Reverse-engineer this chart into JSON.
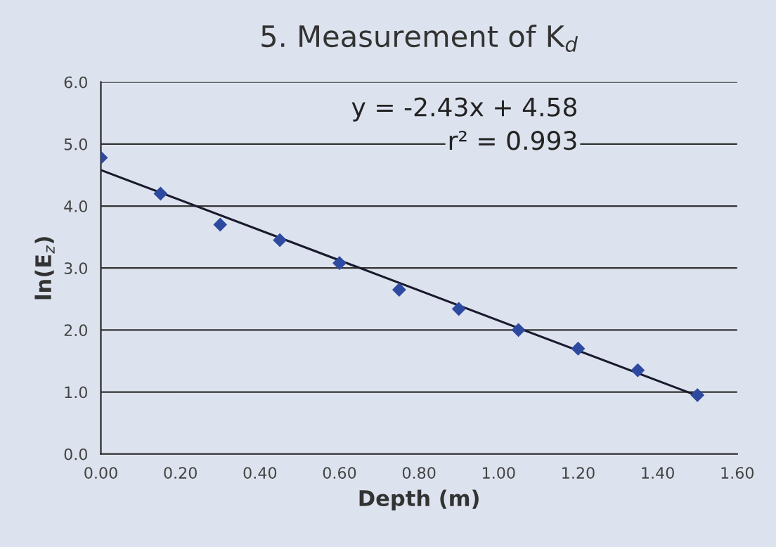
{
  "chart_data": {
    "type": "scatter",
    "title": "5. Measurement of K$_{d}$",
    "xlabel": "Depth (m)",
    "ylabel": "ln(E$_{z}$)",
    "series": [
      {
        "color": "#2e4aa0",
        "x": [
          0,
          0.15,
          0.3,
          0.45,
          0.6,
          0.75,
          0.9,
          1.05,
          1.2,
          1.35,
          1.5
        ],
        "values": [
          4.78,
          4.2,
          3.7,
          3.45,
          3.08,
          2.65,
          2.34,
          2.0,
          1.7,
          1.35,
          0.95
        ],
        "marker": "diamond"
      },
      {
        "type": "line",
        "color": "#1a1a2e",
        "x": [
          0,
          1.5
        ],
        "values": [
          4.58,
          0.94
        ],
        "marker": "none",
        "line_style": "solid"
      }
    ],
    "annotations": [
      "y = -2.43x + 4.58",
      "r² = 0.993"
    ],
    "xlim": [
      0,
      1.6
    ],
    "ylim": [
      0,
      6
    ],
    "xticks": [
      {
        "value": 0,
        "label": "0.00"
      },
      {
        "value": 0.2,
        "label": "0.20"
      },
      {
        "value": 0.4,
        "label": "0.40"
      },
      {
        "value": 0.6,
        "label": "0.60"
      },
      {
        "value": 0.8,
        "label": "0.80"
      },
      {
        "value": 1.0,
        "label": "1.00"
      },
      {
        "value": 1.2,
        "label": "1.20"
      },
      {
        "value": 1.4,
        "label": "1.40"
      },
      {
        "value": 1.6,
        "label": "1.60"
      }
    ],
    "yticks": [
      {
        "value": 0,
        "label": "0.0"
      },
      {
        "value": 1,
        "label": "1.0"
      },
      {
        "value": 2,
        "label": "2.0"
      },
      {
        "value": 3,
        "label": "3.0"
      },
      {
        "value": 4,
        "label": "4.0"
      },
      {
        "value": 5,
        "label": "5.0"
      },
      {
        "value": 6,
        "label": "6.0"
      }
    ],
    "grid": "y",
    "legend": false
  }
}
